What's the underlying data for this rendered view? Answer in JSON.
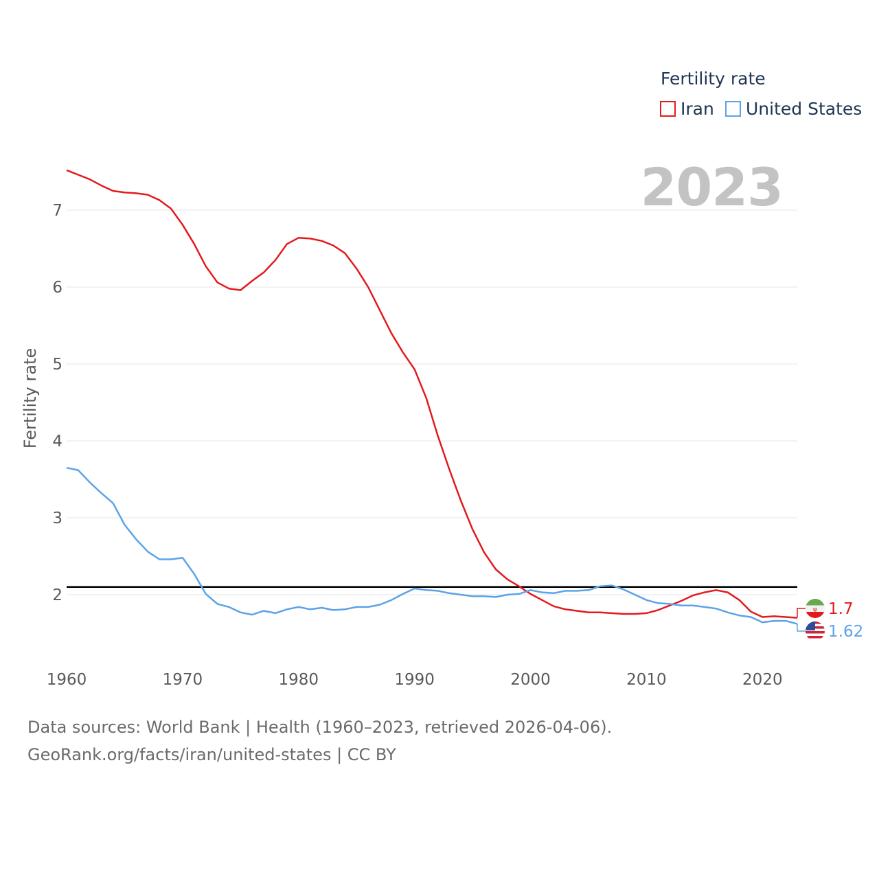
{
  "legend": {
    "title": "Fertility rate",
    "items": [
      {
        "label": "Iran",
        "color": "#e31a1c"
      },
      {
        "label": "United States",
        "color": "#5ba3e6"
      }
    ]
  },
  "current_year": "2023",
  "end_labels": {
    "iran": "1.7",
    "united_states": "1.62"
  },
  "source_line1": "Data sources: World Bank | Health (1960–2023, retrieved 2026-04-06).",
  "source_line2": "GeoRank.org/facts/iran/united-states | CC BY",
  "colors": {
    "iran": "#e31a1c",
    "united_states": "#5ba3e6",
    "reference": "#000000",
    "grid": "#e6e6e6",
    "axis_text": "#5a5a5a"
  },
  "chart_data": {
    "type": "line",
    "title": "",
    "xlabel": "",
    "ylabel": "Fertility rate",
    "xlim": [
      1960,
      2023
    ],
    "ylim": [
      1.1,
      7.6
    ],
    "x_ticks": [
      1960,
      1970,
      1980,
      1990,
      2000,
      2010,
      2020
    ],
    "y_ticks": [
      2,
      3,
      4,
      5,
      6,
      7
    ],
    "reference_line": 2.1,
    "x": [
      1960,
      1961,
      1962,
      1963,
      1964,
      1965,
      1966,
      1967,
      1968,
      1969,
      1970,
      1971,
      1972,
      1973,
      1974,
      1975,
      1976,
      1977,
      1978,
      1979,
      1980,
      1981,
      1982,
      1983,
      1984,
      1985,
      1986,
      1987,
      1988,
      1989,
      1990,
      1991,
      1992,
      1993,
      1994,
      1995,
      1996,
      1997,
      1998,
      1999,
      2000,
      2001,
      2002,
      2003,
      2004,
      2005,
      2006,
      2007,
      2008,
      2009,
      2010,
      2011,
      2012,
      2013,
      2014,
      2015,
      2016,
      2017,
      2018,
      2019,
      2020,
      2021,
      2022,
      2023
    ],
    "series": [
      {
        "name": "Iran",
        "color": "#e31a1c",
        "values": [
          7.52,
          7.46,
          7.4,
          7.32,
          7.25,
          7.23,
          7.22,
          7.2,
          7.13,
          7.02,
          6.81,
          6.56,
          6.27,
          6.06,
          5.98,
          5.96,
          6.08,
          6.19,
          6.35,
          6.56,
          6.64,
          6.63,
          6.6,
          6.54,
          6.44,
          6.24,
          6.0,
          5.7,
          5.4,
          5.15,
          4.93,
          4.56,
          4.07,
          3.63,
          3.22,
          2.85,
          2.55,
          2.33,
          2.2,
          2.11,
          2.01,
          1.93,
          1.85,
          1.81,
          1.79,
          1.77,
          1.77,
          1.76,
          1.75,
          1.75,
          1.76,
          1.8,
          1.86,
          1.92,
          1.99,
          2.03,
          2.06,
          2.03,
          1.93,
          1.78,
          1.71,
          1.72,
          1.71,
          1.7
        ]
      },
      {
        "name": "United States",
        "color": "#5ba3e6",
        "values": [
          3.65,
          3.62,
          3.46,
          3.32,
          3.19,
          2.91,
          2.72,
          2.56,
          2.46,
          2.46,
          2.48,
          2.27,
          2.01,
          1.88,
          1.84,
          1.77,
          1.74,
          1.79,
          1.76,
          1.81,
          1.84,
          1.81,
          1.83,
          1.8,
          1.81,
          1.84,
          1.84,
          1.87,
          1.93,
          2.01,
          2.08,
          2.06,
          2.05,
          2.02,
          2.0,
          1.98,
          1.98,
          1.97,
          2.0,
          2.01,
          2.06,
          2.03,
          2.02,
          2.05,
          2.05,
          2.06,
          2.11,
          2.12,
          2.07,
          2.0,
          1.93,
          1.89,
          1.88,
          1.86,
          1.86,
          1.84,
          1.82,
          1.77,
          1.73,
          1.71,
          1.64,
          1.66,
          1.66,
          1.62
        ]
      }
    ]
  }
}
